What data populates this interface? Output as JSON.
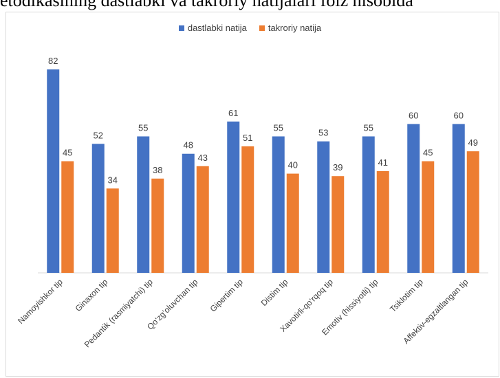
{
  "title": "etodikasining dastlabki va takroriy natijalari foiz hisobida",
  "chart_data": {
    "type": "bar",
    "title": "",
    "xlabel": "",
    "ylabel": "",
    "ylim": [
      0,
      82
    ],
    "grid": false,
    "legend_position": "top-center",
    "categories": [
      "Namoyishkor tip",
      "Ginaxon tip",
      "Pedantik (rasmiyatchi) tip",
      "Qo‘zg‘oluvchan tip",
      "Gipertim tip",
      "Distim tip",
      "Xavotirli-qo‘rqoq tip",
      "Emotiv (hissiyotli) tip",
      "Tsiklotim tip",
      "Affektiv-egzaltlangan tip"
    ],
    "series": [
      {
        "name": "dastlabki natija",
        "color": "#4472C4",
        "values": [
          82,
          52,
          55,
          48,
          61,
          55,
          53,
          55,
          60,
          60
        ]
      },
      {
        "name": "takroriy natija",
        "color": "#ED7D31",
        "values": [
          45,
          34,
          38,
          43,
          51,
          40,
          39,
          41,
          45,
          49
        ]
      }
    ]
  }
}
